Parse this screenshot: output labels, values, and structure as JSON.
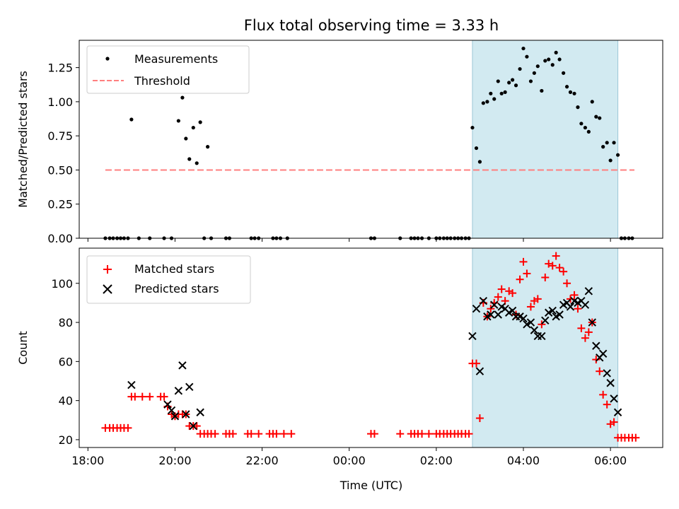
{
  "title": "Flux total observing time = 3.33 h",
  "colors": {
    "measurement": "#000000",
    "threshold": "#ff7f7f",
    "matched": "#ff0000",
    "predicted": "#000000",
    "shade": "#add8e6"
  },
  "chart_data": [
    {
      "type": "scatter",
      "xlabel": "",
      "ylabel": "Matched/Predicted stars",
      "x_unit": "hours since 00:00 UTC (negative = previous evening)",
      "xlim": [
        -6.2,
        7.2
      ],
      "ylim": [
        0,
        1.45
      ],
      "yticks": [
        "0.00",
        "0.25",
        "0.50",
        "0.75",
        "1.00",
        "1.25"
      ],
      "ytick_values": [
        0,
        0.25,
        0.5,
        0.75,
        1.0,
        1.25
      ],
      "shaded_range": [
        2.83,
        6.17
      ],
      "legend": {
        "position": "top-left",
        "entries": [
          "Measurements",
          "Threshold"
        ]
      },
      "threshold": {
        "name": "Threshold",
        "value": 0.5,
        "x_range": [
          -5.6,
          6.55
        ]
      },
      "series": [
        {
          "name": "Measurements",
          "points": [
            [
              -5.6,
              0
            ],
            [
              -5.5,
              0
            ],
            [
              -5.42,
              0
            ],
            [
              -5.33,
              0
            ],
            [
              -5.25,
              0
            ],
            [
              -5.17,
              0
            ],
            [
              -5.08,
              0
            ],
            [
              -5.0,
              0.87
            ],
            [
              -4.83,
              0
            ],
            [
              -4.58,
              0
            ],
            [
              -4.25,
              0
            ],
            [
              -4.08,
              0
            ],
            [
              -3.92,
              0.86
            ],
            [
              -3.83,
              1.03
            ],
            [
              -3.75,
              0.73
            ],
            [
              -3.67,
              0.58
            ],
            [
              -3.58,
              0.81
            ],
            [
              -3.5,
              0.55
            ],
            [
              -3.42,
              0.85
            ],
            [
              -3.33,
              0
            ],
            [
              -3.25,
              0.67
            ],
            [
              -3.17,
              0
            ],
            [
              -2.83,
              0
            ],
            [
              -2.75,
              0
            ],
            [
              -2.25,
              0
            ],
            [
              -2.17,
              0
            ],
            [
              -2.08,
              0
            ],
            [
              -1.75,
              0
            ],
            [
              -1.67,
              0
            ],
            [
              -1.58,
              0
            ],
            [
              -1.42,
              0
            ],
            [
              0.5,
              0
            ],
            [
              0.58,
              0
            ],
            [
              1.17,
              0
            ],
            [
              1.42,
              0
            ],
            [
              1.5,
              0
            ],
            [
              1.58,
              0
            ],
            [
              1.67,
              0
            ],
            [
              1.83,
              0
            ],
            [
              2.0,
              0
            ],
            [
              2.08,
              0
            ],
            [
              2.17,
              0
            ],
            [
              2.25,
              0
            ],
            [
              2.33,
              0
            ],
            [
              2.42,
              0
            ],
            [
              2.5,
              0
            ],
            [
              2.58,
              0
            ],
            [
              2.67,
              0
            ],
            [
              2.75,
              0
            ],
            [
              2.83,
              0.81
            ],
            [
              2.92,
              0.66
            ],
            [
              3.0,
              0.56
            ],
            [
              3.08,
              0.99
            ],
            [
              3.17,
              1.0
            ],
            [
              3.25,
              1.06
            ],
            [
              3.33,
              1.02
            ],
            [
              3.42,
              1.15
            ],
            [
              3.5,
              1.06
            ],
            [
              3.58,
              1.07
            ],
            [
              3.67,
              1.14
            ],
            [
              3.75,
              1.16
            ],
            [
              3.83,
              1.12
            ],
            [
              3.92,
              1.24
            ],
            [
              4.0,
              1.39
            ],
            [
              4.08,
              1.33
            ],
            [
              4.17,
              1.15
            ],
            [
              4.25,
              1.21
            ],
            [
              4.33,
              1.26
            ],
            [
              4.42,
              1.08
            ],
            [
              4.5,
              1.3
            ],
            [
              4.58,
              1.31
            ],
            [
              4.67,
              1.27
            ],
            [
              4.75,
              1.36
            ],
            [
              4.83,
              1.31
            ],
            [
              4.92,
              1.21
            ],
            [
              5.0,
              1.11
            ],
            [
              5.08,
              1.07
            ],
            [
              5.17,
              1.06
            ],
            [
              5.25,
              0.96
            ],
            [
              5.33,
              0.84
            ],
            [
              5.42,
              0.81
            ],
            [
              5.5,
              0.78
            ],
            [
              5.58,
              1.0
            ],
            [
              5.67,
              0.89
            ],
            [
              5.75,
              0.88
            ],
            [
              5.83,
              0.67
            ],
            [
              5.92,
              0.7
            ],
            [
              6.0,
              0.57
            ],
            [
              6.08,
              0.7
            ],
            [
              6.17,
              0.61
            ],
            [
              6.25,
              0
            ],
            [
              6.33,
              0
            ],
            [
              6.42,
              0
            ],
            [
              6.5,
              0
            ]
          ]
        }
      ]
    },
    {
      "type": "scatter",
      "xlabel": "Time (UTC)",
      "ylabel": "Count",
      "x_unit": "hours since 00:00 UTC (negative = previous evening)",
      "xlim": [
        -6.2,
        7.2
      ],
      "ylim": [
        16,
        118
      ],
      "yticks": [
        "20",
        "40",
        "60",
        "80",
        "100"
      ],
      "ytick_values": [
        20,
        40,
        60,
        80,
        100
      ],
      "xticks": [
        "18:00",
        "20:00",
        "22:00",
        "00:00",
        "02:00",
        "04:00",
        "06:00"
      ],
      "xtick_values": [
        -6,
        -4,
        -2,
        0,
        2,
        4,
        6
      ],
      "shaded_range": [
        2.83,
        6.17
      ],
      "legend": {
        "position": "top-left",
        "entries": [
          "Matched stars",
          "Predicted stars"
        ]
      },
      "series": [
        {
          "name": "Matched stars",
          "marker": "plus",
          "points": [
            [
              -5.6,
              26
            ],
            [
              -5.5,
              26
            ],
            [
              -5.42,
              26
            ],
            [
              -5.33,
              26
            ],
            [
              -5.25,
              26
            ],
            [
              -5.17,
              26
            ],
            [
              -5.08,
              26
            ],
            [
              -5.0,
              42
            ],
            [
              -4.92,
              42
            ],
            [
              -4.75,
              42
            ],
            [
              -4.58,
              42
            ],
            [
              -4.33,
              42
            ],
            [
              -4.25,
              42
            ],
            [
              -4.17,
              37
            ],
            [
              -4.08,
              33
            ],
            [
              -4.0,
              32
            ],
            [
              -3.92,
              33
            ],
            [
              -3.83,
              33
            ],
            [
              -3.75,
              33
            ],
            [
              -3.67,
              27
            ],
            [
              -3.58,
              27
            ],
            [
              -3.5,
              27
            ],
            [
              -3.42,
              23
            ],
            [
              -3.33,
              23
            ],
            [
              -3.25,
              23
            ],
            [
              -3.17,
              23
            ],
            [
              -3.08,
              23
            ],
            [
              -2.83,
              23
            ],
            [
              -2.75,
              23
            ],
            [
              -2.67,
              23
            ],
            [
              -2.33,
              23
            ],
            [
              -2.25,
              23
            ],
            [
              -2.08,
              23
            ],
            [
              -1.83,
              23
            ],
            [
              -1.75,
              23
            ],
            [
              -1.67,
              23
            ],
            [
              -1.5,
              23
            ],
            [
              -1.33,
              23
            ],
            [
              0.5,
              23
            ],
            [
              0.58,
              23
            ],
            [
              1.17,
              23
            ],
            [
              1.42,
              23
            ],
            [
              1.5,
              23
            ],
            [
              1.58,
              23
            ],
            [
              1.67,
              23
            ],
            [
              1.83,
              23
            ],
            [
              2.0,
              23
            ],
            [
              2.08,
              23
            ],
            [
              2.17,
              23
            ],
            [
              2.25,
              23
            ],
            [
              2.33,
              23
            ],
            [
              2.42,
              23
            ],
            [
              2.5,
              23
            ],
            [
              2.58,
              23
            ],
            [
              2.67,
              23
            ],
            [
              2.75,
              23
            ],
            [
              2.83,
              59
            ],
            [
              2.92,
              59
            ],
            [
              3.0,
              31
            ],
            [
              3.08,
              90
            ],
            [
              3.17,
              83
            ],
            [
              3.25,
              87
            ],
            [
              3.33,
              90
            ],
            [
              3.42,
              93
            ],
            [
              3.5,
              97
            ],
            [
              3.58,
              91
            ],
            [
              3.67,
              96
            ],
            [
              3.75,
              95
            ],
            [
              3.83,
              84
            ],
            [
              3.92,
              102
            ],
            [
              4.0,
              111
            ],
            [
              4.08,
              105
            ],
            [
              4.17,
              88
            ],
            [
              4.25,
              91
            ],
            [
              4.33,
              92
            ],
            [
              4.42,
              79
            ],
            [
              4.5,
              103
            ],
            [
              4.58,
              110
            ],
            [
              4.67,
              109
            ],
            [
              4.75,
              114
            ],
            [
              4.83,
              108
            ],
            [
              4.92,
              106
            ],
            [
              5.0,
              100
            ],
            [
              5.08,
              92
            ],
            [
              5.17,
              94
            ],
            [
              5.25,
              87
            ],
            [
              5.33,
              77
            ],
            [
              5.42,
              72
            ],
            [
              5.5,
              75
            ],
            [
              5.58,
              80
            ],
            [
              5.67,
              61
            ],
            [
              5.75,
              55
            ],
            [
              5.83,
              43
            ],
            [
              5.92,
              38
            ],
            [
              6.0,
              28
            ],
            [
              6.08,
              29
            ],
            [
              6.17,
              21
            ],
            [
              6.25,
              21
            ],
            [
              6.33,
              21
            ],
            [
              6.42,
              21
            ],
            [
              6.5,
              21
            ],
            [
              6.58,
              21
            ]
          ]
        },
        {
          "name": "Predicted stars",
          "marker": "x",
          "points": [
            [
              -5.0,
              48
            ],
            [
              -4.17,
              38
            ],
            [
              -4.08,
              35
            ],
            [
              -4.0,
              32
            ],
            [
              -3.92,
              45
            ],
            [
              -3.83,
              58
            ],
            [
              -3.75,
              33
            ],
            [
              -3.67,
              47
            ],
            [
              -3.58,
              27
            ],
            [
              -3.42,
              34
            ],
            [
              2.83,
              73
            ],
            [
              2.92,
              87
            ],
            [
              3.0,
              55
            ],
            [
              3.08,
              91
            ],
            [
              3.17,
              83
            ],
            [
              3.25,
              84
            ],
            [
              3.33,
              89
            ],
            [
              3.42,
              84
            ],
            [
              3.5,
              88
            ],
            [
              3.58,
              87
            ],
            [
              3.67,
              85
            ],
            [
              3.75,
              86
            ],
            [
              3.83,
              83
            ],
            [
              3.92,
              83
            ],
            [
              4.0,
              82
            ],
            [
              4.08,
              79
            ],
            [
              4.17,
              80
            ],
            [
              4.25,
              76
            ],
            [
              4.33,
              73
            ],
            [
              4.42,
              73
            ],
            [
              4.5,
              81
            ],
            [
              4.58,
              85
            ],
            [
              4.67,
              86
            ],
            [
              4.75,
              83
            ],
            [
              4.83,
              84
            ],
            [
              4.92,
              89
            ],
            [
              5.0,
              90
            ],
            [
              5.08,
              88
            ],
            [
              5.17,
              91
            ],
            [
              5.25,
              90
            ],
            [
              5.33,
              91
            ],
            [
              5.42,
              89
            ],
            [
              5.5,
              96
            ],
            [
              5.58,
              80
            ],
            [
              5.67,
              68
            ],
            [
              5.75,
              62
            ],
            [
              5.83,
              64
            ],
            [
              5.92,
              54
            ],
            [
              6.0,
              49
            ],
            [
              6.08,
              41
            ],
            [
              6.17,
              34
            ]
          ]
        }
      ]
    }
  ]
}
